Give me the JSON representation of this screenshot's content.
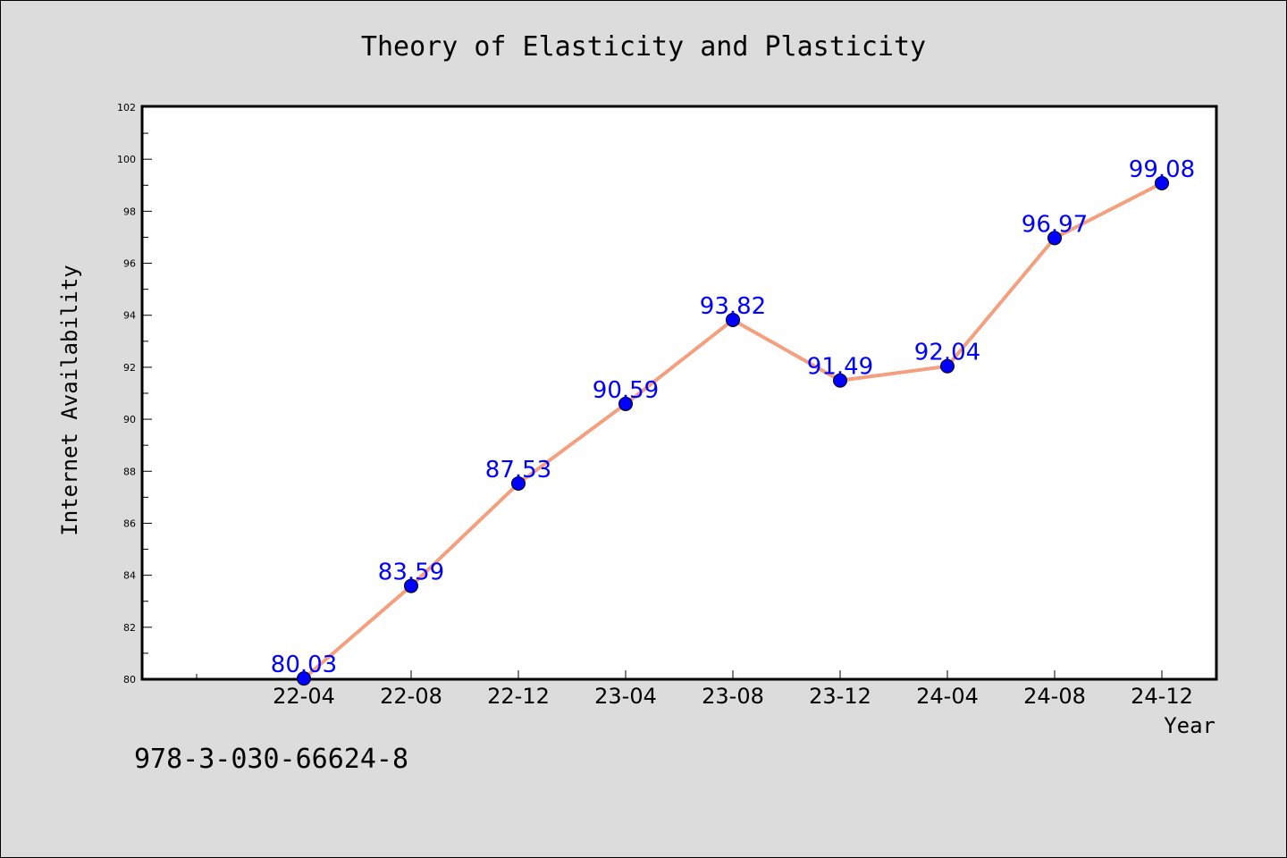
{
  "chart_data": {
    "type": "line",
    "title": "Theory of Elasticity and Plasticity",
    "xlabel": "Year",
    "ylabel": "Internet Availability",
    "categories": [
      "22-04",
      "22-08",
      "22-12",
      "23-04",
      "23-08",
      "23-12",
      "24-04",
      "24-08",
      "24-12"
    ],
    "series": [
      {
        "values": [
          80.03,
          83.59,
          87.53,
          90.59,
          93.82,
          91.49,
          92.04,
          96.97,
          99.08
        ]
      }
    ],
    "data_labels": [
      "80.03",
      "83.59",
      "87.53",
      "90.59",
      "93.82",
      "91.49",
      "92.04",
      "96.97",
      "99.08"
    ],
    "ylim": [
      80,
      102
    ],
    "yticks": [
      80,
      82,
      84,
      86,
      88,
      90,
      92,
      94,
      96,
      98,
      100,
      102
    ],
    "grid": false,
    "line_color": "#f4a07e",
    "marker_color": "#0000ff",
    "label_color": "#0000ff",
    "background_color": "#dcdcdc",
    "plot_background": "#ffffff"
  },
  "footer": {
    "isbn": "978-3-030-66624-8"
  }
}
